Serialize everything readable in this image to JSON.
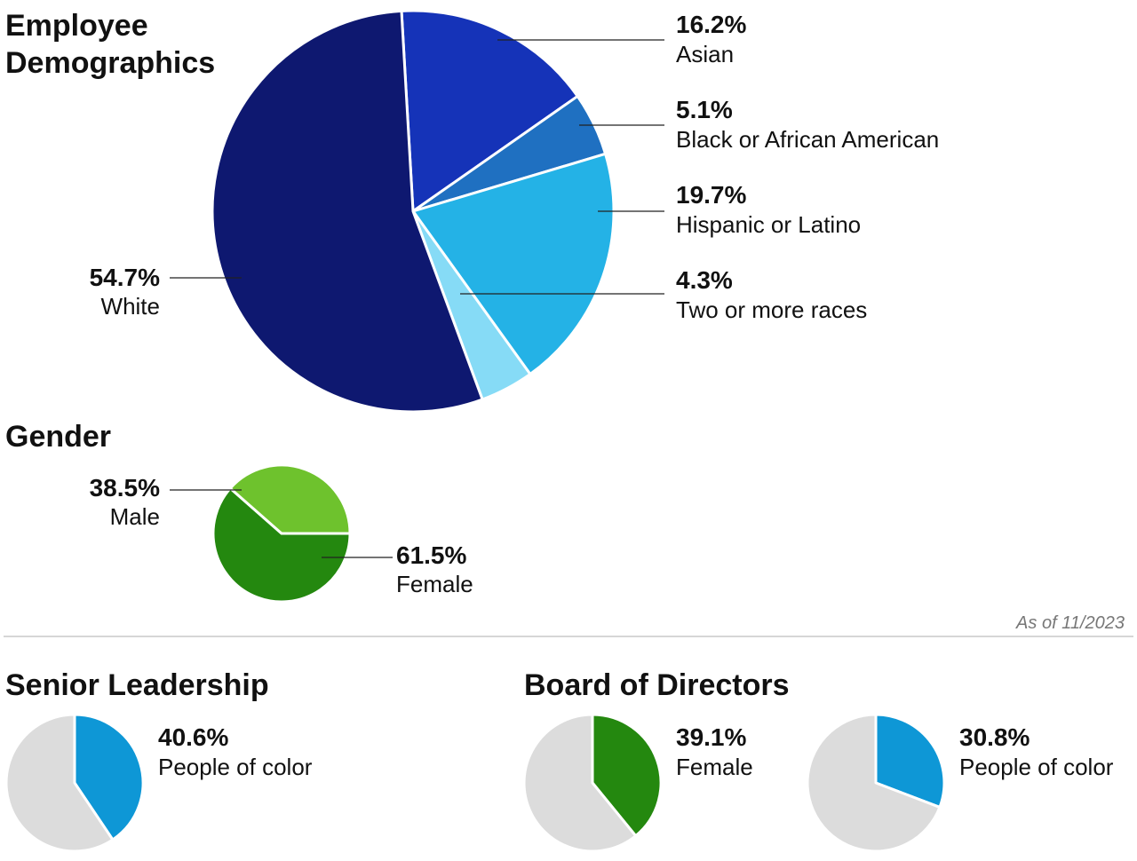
{
  "charts": {
    "ethnicity": {
      "title_line1": "Employee",
      "title_line2": "Demographics"
    },
    "gender": {
      "title": "Gender"
    },
    "senior": {
      "title": "Senior Leadership"
    },
    "board": {
      "title": "Board of Directors"
    }
  },
  "footnote": "As of 11/2023",
  "chart_data": [
    {
      "id": "ethnicity",
      "type": "pie",
      "title": "Employee Demographics",
      "slices": [
        {
          "label": "Asian",
          "value": 16.2,
          "display": "16.2%",
          "color": "#1533b8"
        },
        {
          "label": "Black or African American",
          "value": 5.1,
          "display": "5.1%",
          "color": "#1f70c1"
        },
        {
          "label": "Hispanic or Latino",
          "value": 19.7,
          "display": "19.7%",
          "color": "#24b2e6"
        },
        {
          "label": "Two or more races",
          "value": 4.3,
          "display": "4.3%",
          "color": "#86dbf6"
        },
        {
          "label": "White",
          "value": 54.7,
          "display": "54.7%",
          "color": "#0e1870"
        }
      ]
    },
    {
      "id": "gender",
      "type": "pie",
      "title": "Gender",
      "slices": [
        {
          "label": "Female",
          "value": 61.5,
          "display": "61.5%",
          "color": "#24880f"
        },
        {
          "label": "Male",
          "value": 38.5,
          "display": "38.5%",
          "color": "#6ec22d"
        }
      ]
    },
    {
      "id": "senior",
      "type": "pie",
      "title": "Senior Leadership",
      "slices": [
        {
          "label": "People of color",
          "value": 40.6,
          "display": "40.6%",
          "color": "#0e97d6"
        },
        {
          "label": "",
          "value": 59.4,
          "color": "#dcdcdc"
        }
      ]
    },
    {
      "id": "board-female",
      "type": "pie",
      "title": "Board of Directors",
      "slices": [
        {
          "label": "Female",
          "value": 39.1,
          "display": "39.1%",
          "color": "#24880f"
        },
        {
          "label": "",
          "value": 60.9,
          "color": "#dcdcdc"
        }
      ]
    },
    {
      "id": "board-poc",
      "type": "pie",
      "title": "Board of Directors",
      "slices": [
        {
          "label": "People of color",
          "value": 30.8,
          "display": "30.8%",
          "color": "#0e97d6"
        },
        {
          "label": "",
          "value": 69.2,
          "color": "#dcdcdc"
        }
      ]
    }
  ]
}
